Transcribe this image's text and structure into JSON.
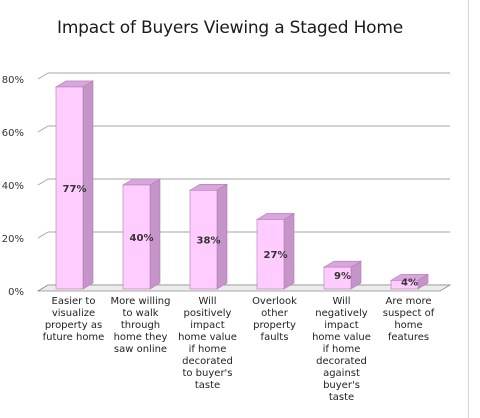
{
  "chart_data": {
    "type": "bar",
    "title": "Impact of Buyers Viewing a Staged Home",
    "xlabel": "",
    "ylabel": "",
    "ylim": [
      0,
      80
    ],
    "yticks": [
      "0%",
      "20%",
      "40%",
      "60%",
      "80%"
    ],
    "ytick_values": [
      0,
      20,
      40,
      60,
      80
    ],
    "grid": true,
    "legend": "none",
    "categories": [
      "Easier to visualize property as future home",
      "More willing to walk through home they saw online",
      "Will positively impact home value if home decorated to buyer's taste",
      "Overlook other property faults",
      "Will negatively impact home value if home decorated against buyer's taste",
      "Are more suspect of home features"
    ],
    "category_lines": [
      [
        "Easier to",
        "visualize",
        "property as",
        "future home"
      ],
      [
        "More willing",
        "to walk",
        "through",
        "home they",
        "saw online"
      ],
      [
        "Will",
        "positively",
        "impact",
        "home value",
        "if home",
        "decorated",
        "to buyer's",
        "taste"
      ],
      [
        "Overlook",
        "other",
        "property",
        "faults"
      ],
      [
        "Will",
        "negatively",
        "impact",
        "home value",
        "if home",
        "decorated",
        "against",
        "buyer's",
        "taste"
      ],
      [
        "Are more",
        "suspect of",
        "home",
        "features"
      ]
    ],
    "values": [
      77,
      40,
      38,
      27,
      9,
      4
    ],
    "data_labels": [
      "77%",
      "40%",
      "38%",
      "27%",
      "9%",
      "4%"
    ],
    "colors": {
      "bar_front": "#ffccff",
      "bar_side": "#c595c9",
      "bar_top": "#d9a6dc",
      "bar_edge": "#b07ab4",
      "grid": "#a6a6a6",
      "floor": "#8c8c8c"
    }
  }
}
